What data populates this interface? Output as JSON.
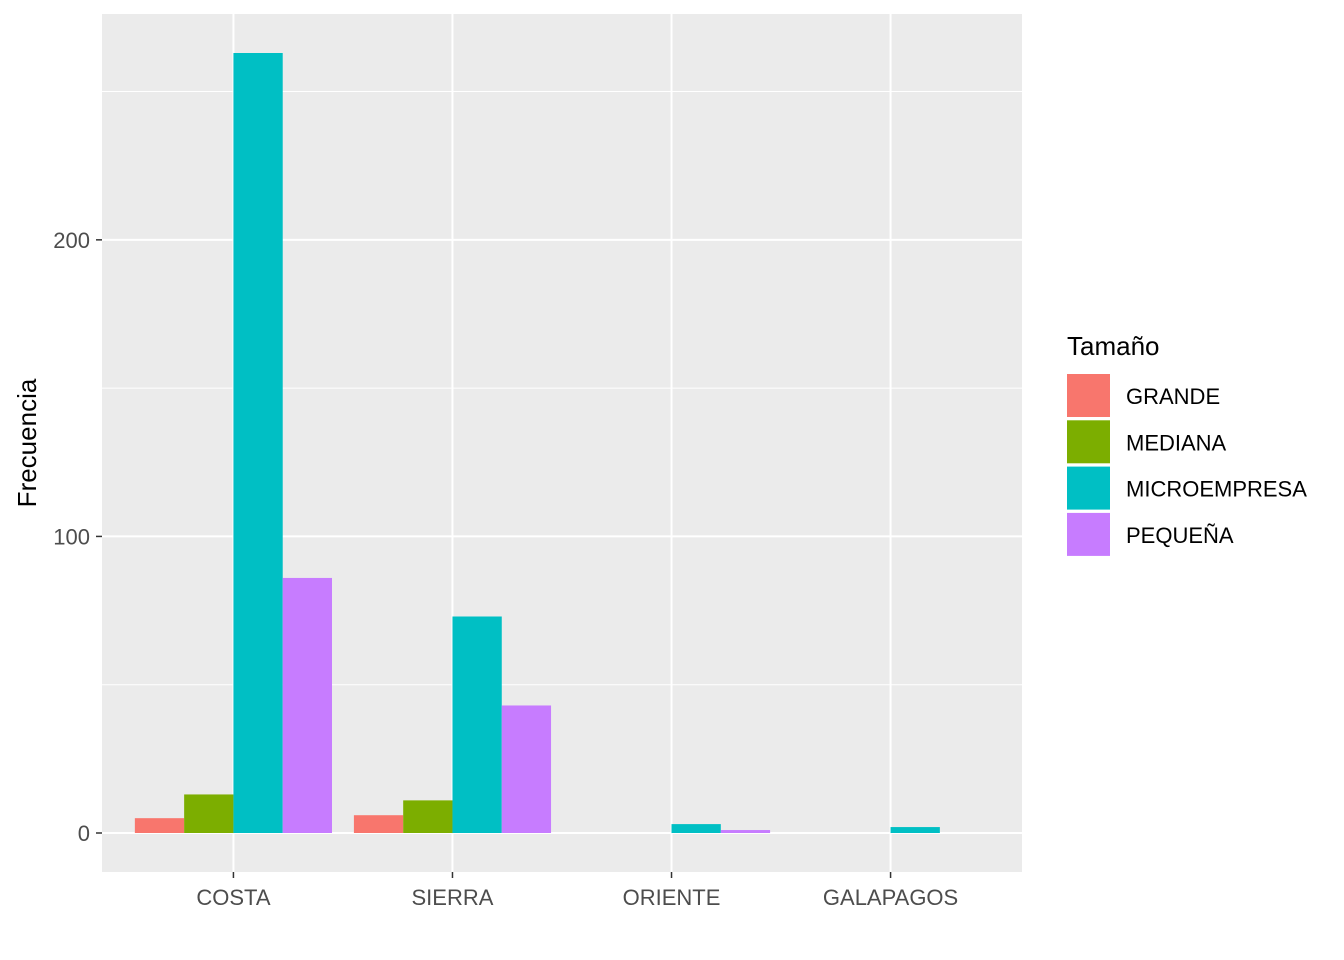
{
  "chart_data": {
    "type": "bar",
    "title": "",
    "xlabel": "",
    "ylabel": "Frecuencia",
    "categories": [
      "COSTA",
      "SIERRA",
      "ORIENTE",
      "GALAPAGOS"
    ],
    "series": [
      {
        "name": "GRANDE",
        "color": "#F8766D",
        "values": [
          5,
          6,
          0,
          0
        ]
      },
      {
        "name": "MEDIANA",
        "color": "#7CAE00",
        "values": [
          13,
          11,
          0,
          0
        ]
      },
      {
        "name": "MICROEMPRESA",
        "color": "#00BFC4",
        "values": [
          263,
          73,
          3,
          2
        ]
      },
      {
        "name": "PEQUEÑA",
        "color": "#C77CFF",
        "values": [
          86,
          43,
          1,
          0
        ]
      }
    ],
    "ylim": [
      -13.15,
      276.15
    ],
    "yticks": [
      0,
      100,
      200
    ],
    "ytick_labels": [
      "0",
      "100",
      "200"
    ],
    "grid": true,
    "legend": {
      "title": "Tamaño",
      "position": "right"
    },
    "panel_color": "#EBEBEB",
    "grid_color": "#FFFFFF"
  }
}
